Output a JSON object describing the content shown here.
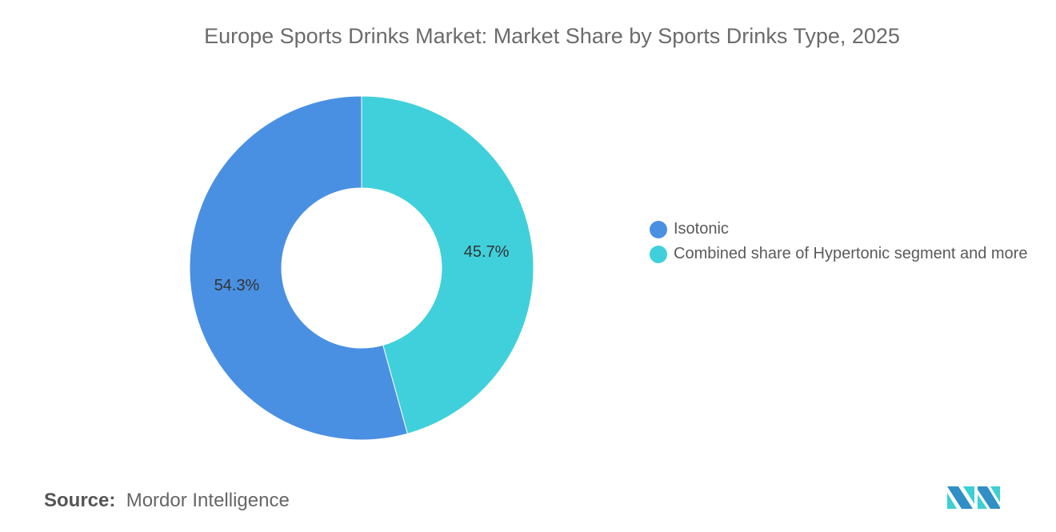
{
  "chart_data": {
    "type": "pie",
    "variant": "donut",
    "title": "Europe Sports Drinks Market: Market Share by Sports Drinks Type, 2025",
    "categories": [
      "Isotonic",
      "Combined share of Hypertonic segment and more"
    ],
    "values": [
      54.3,
      45.7
    ],
    "data_labels": [
      "54.3%",
      "45.7%"
    ],
    "colors": [
      "#4a90e2",
      "#40d0db"
    ],
    "legend_position": "right"
  },
  "source": {
    "label": "Source:",
    "value": "Mordor Intelligence"
  },
  "logo": {
    "name": "Mordor Intelligence logo",
    "colors": [
      "#2f8fc6",
      "#3ccfd4"
    ]
  }
}
